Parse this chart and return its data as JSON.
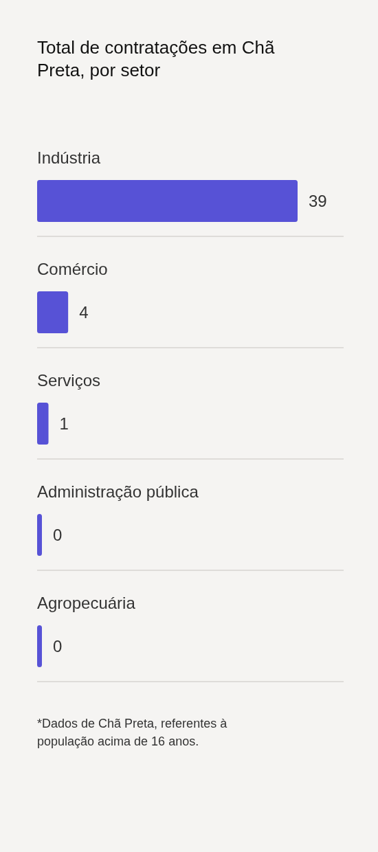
{
  "chart_data": {
    "type": "bar",
    "orientation": "horizontal",
    "title": "Total de contratações em Chã Preta, por setor",
    "categories": [
      "Indústria",
      "Comércio",
      "Serviços",
      "Administração pública",
      "Agropecuária"
    ],
    "values": [
      39,
      4,
      1,
      0,
      0
    ],
    "color": "#5752d6",
    "data_labels": true,
    "tick_labels": "y",
    "annotations": [
      "*Dados de Chã Preta, referentes à população acima de 16 anos."
    ]
  }
}
